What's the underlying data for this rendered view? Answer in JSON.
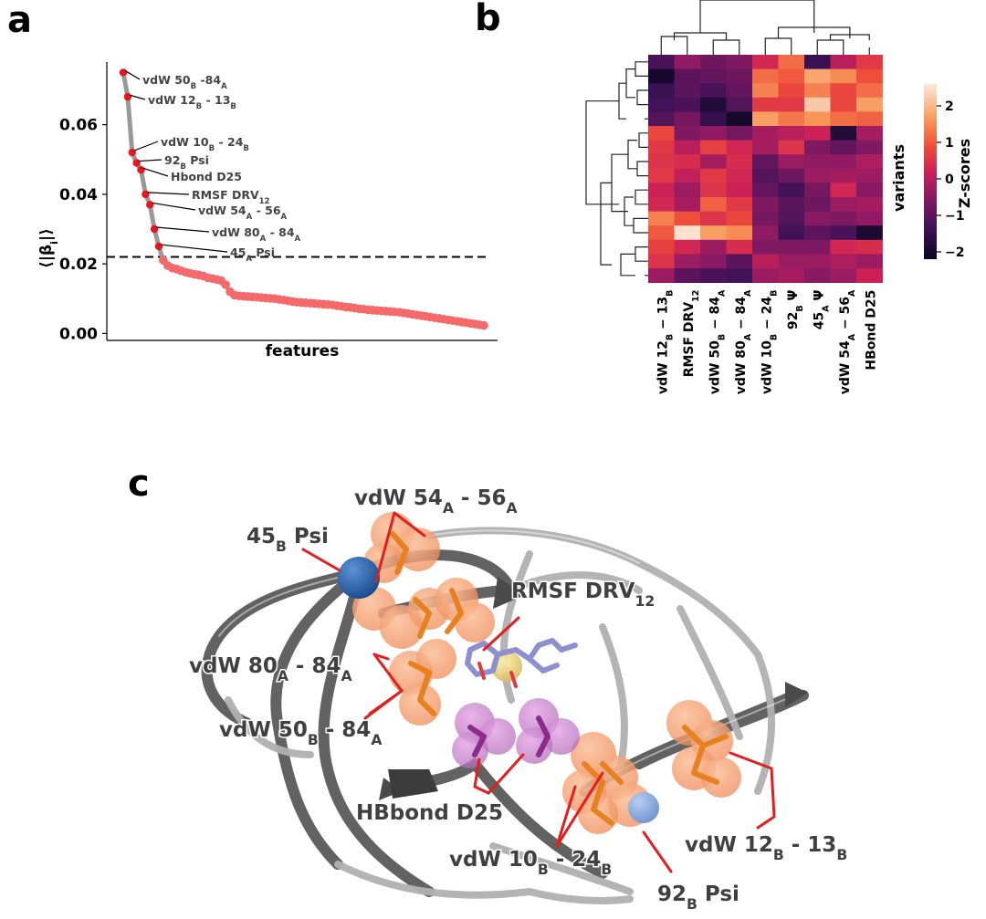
{
  "panels": {
    "a": {
      "letter": "a",
      "ylabel": "⟨|β",
      "ylabel_sub": "i",
      "ylabel_end": "|⟩",
      "xlabel": "features",
      "threshold": 0.022,
      "colors": {
        "top": "#e8161c",
        "rest": "#f46a6a",
        "line": "#999999"
      },
      "annotations": [
        {
          "text": "vdW 50",
          "sub": "B",
          "tail": " -84",
          "sub2": "A"
        },
        {
          "text": "vdW 12",
          "sub": "B",
          "tail": " - 13",
          "sub2": "B"
        },
        {
          "text": "vdW 10",
          "sub": "B",
          "tail": " - 24",
          "sub2": "B"
        },
        {
          "text": "92",
          "sub": "B",
          "tail": " Psi",
          "sub2": ""
        },
        {
          "text": "Hbond D25",
          "sub": "",
          "tail": "",
          "sub2": ""
        },
        {
          "text": "RMSF DRV",
          "sub": "12",
          "tail": "",
          "sub2": "",
          "subDown": false
        },
        {
          "text": "vdW 54",
          "sub": "A",
          "tail": " - 56",
          "sub2": "A"
        },
        {
          "text": "vdW 80",
          "sub": "A",
          "tail": " - 84",
          "sub2": "A"
        },
        {
          "text": "45",
          "sub": "A",
          "tail": " Psi",
          "sub2": ""
        }
      ]
    },
    "b": {
      "letter": "b",
      "right_label": "variants",
      "colorbar_label": "Z-scores",
      "colorbar_ticks": [
        "2",
        "1",
        "0",
        "−1",
        "−2"
      ],
      "col_labels": [
        {
          "t": "vdW 12",
          "s": "B",
          "t2": " − 13",
          "s2": "B"
        },
        {
          "t": "RMSF DRV",
          "s": "12",
          "t2": "",
          "s2": ""
        },
        {
          "t": "vdW 50",
          "s": "B",
          "t2": " − 84",
          "s2": "A"
        },
        {
          "t": "vdW 80",
          "s": "A",
          "t2": " − 84",
          "s2": "A"
        },
        {
          "t": "vdW 10",
          "s": "B",
          "t2": " − 24",
          "s2": "B"
        },
        {
          "t": "92",
          "s": "B",
          "t2": " Ψ",
          "s2": ""
        },
        {
          "t": "45",
          "s": "A",
          "t2": " Ψ",
          "s2": ""
        },
        {
          "t": "vdW 54",
          "s": "A",
          "t2": " − 56",
          "s2": "A"
        },
        {
          "t": "HBond D25",
          "s": "",
          "t2": "",
          "s2": ""
        }
      ]
    },
    "c": {
      "letter": "c",
      "labels": [
        {
          "t": "45",
          "s": "B",
          "t2": " Psi",
          "s2": ""
        },
        {
          "t": "vdW 54",
          "s": "A",
          "t2": " - 56",
          "s2": "A"
        },
        {
          "t": "RMSF DRV",
          "s": "12",
          "t2": "",
          "s2": ""
        },
        {
          "t": "vdW 80",
          "s": "A",
          "t2": " - 84",
          "s2": "A"
        },
        {
          "t": "vdW 50",
          "s": "B",
          "t2": " - 84",
          "s2": "A"
        },
        {
          "t": "HBbond D25",
          "s": "",
          "t2": "",
          "s2": ""
        },
        {
          "t": "vdW 10",
          "s": "B",
          "t2": " - 24",
          "s2": "B"
        },
        {
          "t": "92",
          "s": "B",
          "t2": " Psi",
          "s2": ""
        },
        {
          "t": "vdW 12",
          "s": "B",
          "t2": " - 13",
          "s2": "B"
        }
      ]
    }
  },
  "chart_data": [
    {
      "type": "line",
      "panel": "a",
      "xlabel": "features",
      "ylabel": "⟨|βi|⟩",
      "yticks": [
        0.0,
        0.02,
        0.04,
        0.06
      ],
      "ytick_labels": [
        "0.00",
        "0.02",
        "0.04",
        "0.06"
      ],
      "ylim": [
        -0.002,
        0.078
      ],
      "threshold_line": 0.022,
      "series": [
        {
          "values": [
            0.075,
            0.068,
            0.052,
            0.049,
            0.047,
            0.04,
            0.037,
            0.03,
            0.025,
            0.021,
            0.0195,
            0.0188,
            0.0185,
            0.018,
            0.0176,
            0.0173,
            0.017,
            0.0168,
            0.0165,
            0.016,
            0.0158,
            0.0155,
            0.0152,
            0.014,
            0.012,
            0.011,
            0.0108,
            0.0107,
            0.0106,
            0.0105,
            0.0104,
            0.0103,
            0.0102,
            0.0101,
            0.01,
            0.0098,
            0.0096,
            0.0094,
            0.0092,
            0.009,
            0.0089,
            0.0088,
            0.0087,
            0.0086,
            0.0085,
            0.0084,
            0.0083,
            0.0082,
            0.008,
            0.0078,
            0.0076,
            0.0075,
            0.0073,
            0.0071,
            0.007,
            0.0068,
            0.0067,
            0.0066,
            0.0065,
            0.0064,
            0.0063,
            0.0062,
            0.0061,
            0.0059,
            0.0057,
            0.0055,
            0.0053,
            0.0051,
            0.0049,
            0.0047,
            0.0045,
            0.0043,
            0.0041,
            0.0039,
            0.0037,
            0.0035,
            0.0033,
            0.0031,
            0.0029,
            0.0027,
            0.0025,
            0.0023
          ]
        }
      ],
      "highlighted_count": 9
    },
    {
      "type": "heatmap",
      "panel": "b",
      "vmin": -2.2,
      "vmax": 2.6,
      "colorbar_ticks": [
        2,
        1,
        0,
        -1,
        -2
      ],
      "columns": [
        "vdW 12B − 13B",
        "RMSF DRV12",
        "vdW 50B − 84A",
        "vdW 80A − 84A",
        "vdW 10B − 24B",
        "92B Ψ",
        "45A Ψ",
        "vdW 54A − 56A",
        "HBond D25"
      ],
      "matrix": [
        [
          -1.2,
          -0.4,
          -0.8,
          -0.6,
          0.3,
          1.2,
          -1.4,
          0.0,
          0.6
        ],
        [
          -2.0,
          -1.0,
          -0.9,
          -0.8,
          1.2,
          1.0,
          1.8,
          1.5,
          0.9
        ],
        [
          -1.4,
          -1.0,
          -1.2,
          -0.9,
          1.4,
          0.8,
          1.4,
          0.8,
          1.2
        ],
        [
          -1.3,
          -1.2,
          -1.8,
          -1.1,
          0.6,
          0.6,
          2.2,
          0.8,
          1.7
        ],
        [
          -1.1,
          -0.7,
          -1.5,
          -2.0,
          1.7,
          1.3,
          1.6,
          1.2,
          1.1
        ],
        [
          0.8,
          -0.6,
          -0.4,
          -0.7,
          -0.2,
          0.0,
          0.2,
          -1.8,
          -0.2
        ],
        [
          0.6,
          0.0,
          0.7,
          0.3,
          -0.2,
          0.5,
          -0.6,
          -0.9,
          -0.6
        ],
        [
          0.5,
          0.4,
          -0.2,
          0.4,
          -0.9,
          -0.3,
          -0.4,
          -0.4,
          -0.1
        ],
        [
          0.6,
          0.1,
          0.6,
          0.3,
          -1.1,
          -0.8,
          -0.3,
          -0.2,
          -0.3
        ],
        [
          0.2,
          -0.3,
          0.5,
          0.2,
          -0.9,
          -1.3,
          -0.7,
          0.3,
          -0.5
        ],
        [
          0.3,
          -0.2,
          1.1,
          0.6,
          -0.6,
          -1.0,
          -0.8,
          -0.3,
          -0.2
        ],
        [
          1.4,
          0.9,
          0.5,
          0.8,
          -0.7,
          -1.1,
          -0.5,
          -0.6,
          -0.4
        ],
        [
          1.0,
          2.5,
          1.7,
          1.5,
          -0.4,
          -1.3,
          -1.0,
          -1.2,
          -1.9
        ],
        [
          0.7,
          0.3,
          -0.3,
          0.4,
          -0.6,
          -0.6,
          -0.6,
          0.3,
          0.4
        ],
        [
          0.5,
          -0.3,
          -0.5,
          -1.0,
          0.0,
          -0.3,
          -0.3,
          -0.1,
          -0.3
        ],
        [
          -0.3,
          -1.0,
          -1.2,
          -1.3,
          -0.3,
          -0.2,
          -0.5,
          -0.3,
          0.2
        ]
      ]
    }
  ]
}
